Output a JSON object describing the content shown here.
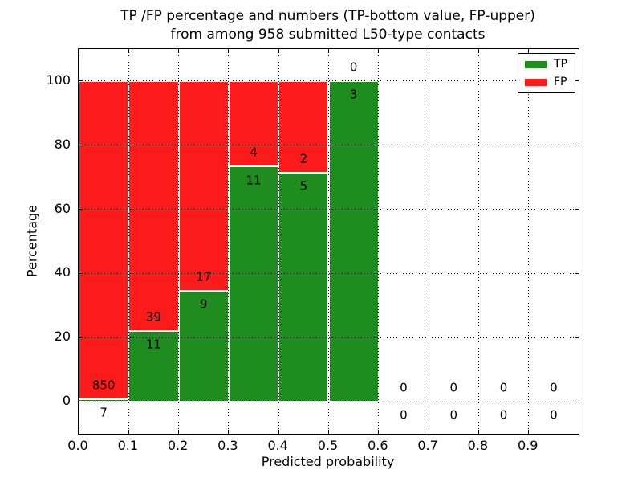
{
  "title": {
    "line1": "TP /FP percentage and numbers (TP-bottom value, FP-upper)",
    "line2": "from among 958 submitted L50-type contacts"
  },
  "axes": {
    "xlabel": "Predicted probability",
    "ylabel": "Percentage"
  },
  "chart_data": {
    "type": "bar",
    "stacked": true,
    "title": "TP /FP percentage and numbers (TP-bottom value, FP-upper) from among 958 submitted L50-type contacts",
    "xlabel": "Predicted probability",
    "ylabel": "Percentage",
    "xlim": [
      0.0,
      1.0
    ],
    "ylim": [
      -10,
      110
    ],
    "xticks": [
      0.0,
      0.1,
      0.2,
      0.3,
      0.4,
      0.5,
      0.6,
      0.7,
      0.8,
      0.9
    ],
    "yticks": [
      0,
      20,
      40,
      60,
      80,
      100
    ],
    "grid": true,
    "grid_style": "dotted",
    "legend_position": "upper right",
    "total_contacts": 958,
    "series": [
      {
        "name": "TP",
        "color": "#1e8c1e"
      },
      {
        "name": "FP",
        "color": "#fb1b1b"
      }
    ],
    "bins": [
      {
        "x0": 0.0,
        "x1": 0.1,
        "tp": 7,
        "fp": 850,
        "tp_pct": 0.8,
        "fp_pct": 99.2
      },
      {
        "x0": 0.1,
        "x1": 0.2,
        "tp": 11,
        "fp": 39,
        "tp_pct": 22.0,
        "fp_pct": 78.0
      },
      {
        "x0": 0.2,
        "x1": 0.3,
        "tp": 9,
        "fp": 17,
        "tp_pct": 34.6,
        "fp_pct": 65.4
      },
      {
        "x0": 0.3,
        "x1": 0.4,
        "tp": 11,
        "fp": 4,
        "tp_pct": 73.3,
        "fp_pct": 26.7
      },
      {
        "x0": 0.4,
        "x1": 0.5,
        "tp": 5,
        "fp": 2,
        "tp_pct": 71.4,
        "fp_pct": 28.6
      },
      {
        "x0": 0.5,
        "x1": 0.6,
        "tp": 3,
        "fp": 0,
        "tp_pct": 100.0,
        "fp_pct": 0.0
      },
      {
        "x0": 0.6,
        "x1": 0.7,
        "tp": 0,
        "fp": 0,
        "tp_pct": 0.0,
        "fp_pct": 0.0
      },
      {
        "x0": 0.7,
        "x1": 0.8,
        "tp": 0,
        "fp": 0,
        "tp_pct": 0.0,
        "fp_pct": 0.0
      },
      {
        "x0": 0.8,
        "x1": 0.9,
        "tp": 0,
        "fp": 0,
        "tp_pct": 0.0,
        "fp_pct": 0.0
      },
      {
        "x0": 0.9,
        "x1": 1.0,
        "tp": 0,
        "fp": 0,
        "tp_pct": 0.0,
        "fp_pct": 0.0
      }
    ]
  },
  "colors": {
    "tp": "#1e8c1e",
    "fp": "#fb1b1b",
    "frame": "#000000",
    "background": "#ffffff"
  }
}
